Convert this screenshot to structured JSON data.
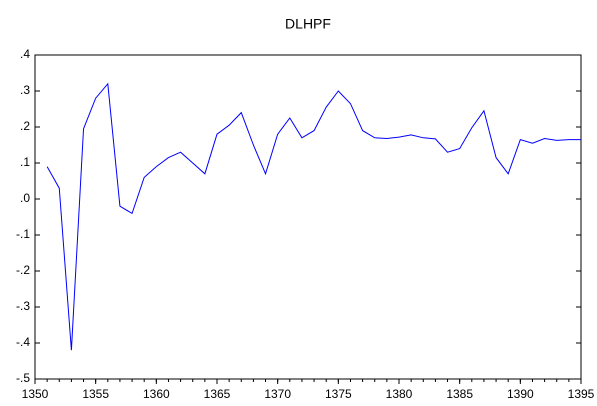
{
  "chart_data": {
    "type": "line",
    "title": "DLHPF",
    "x": [
      1351,
      1352,
      1353,
      1354,
      1355,
      1356,
      1357,
      1358,
      1359,
      1360,
      1361,
      1362,
      1363,
      1364,
      1365,
      1366,
      1367,
      1368,
      1369,
      1370,
      1371,
      1372,
      1373,
      1374,
      1375,
      1376,
      1377,
      1378,
      1379,
      1380,
      1381,
      1382,
      1383,
      1384,
      1385,
      1386,
      1387,
      1388,
      1389,
      1390,
      1391,
      1392,
      1393,
      1394,
      1395
    ],
    "series": [
      {
        "name": "DLHPF",
        "color": "#0000ff",
        "values": [
          0.09,
          0.03,
          -0.42,
          0.195,
          0.28,
          0.32,
          -0.02,
          -0.04,
          0.06,
          0.09,
          0.115,
          0.13,
          0.1,
          0.07,
          0.18,
          0.205,
          0.24,
          0.15,
          0.07,
          0.18,
          0.225,
          0.17,
          0.19,
          0.255,
          0.3,
          0.265,
          0.19,
          0.17,
          0.168,
          0.172,
          0.178,
          0.17,
          0.167,
          0.13,
          0.14,
          0.198,
          0.245,
          0.115,
          0.07,
          0.165,
          0.155,
          0.168,
          0.163,
          0.165,
          0.165
        ]
      }
    ],
    "xlim": [
      1350,
      1395
    ],
    "xticks": [
      1350,
      1355,
      1360,
      1365,
      1370,
      1375,
      1380,
      1385,
      1390,
      1395
    ],
    "ylim": [
      -0.5,
      0.4
    ],
    "yticks": [
      {
        "value": -0.5,
        "label": "-.5"
      },
      {
        "value": -0.4,
        "label": "-.4"
      },
      {
        "value": -0.3,
        "label": "-.3"
      },
      {
        "value": -0.2,
        "label": "-.2"
      },
      {
        "value": -0.1,
        "label": "-.1"
      },
      {
        "value": 0,
        "label": ".0"
      },
      {
        "value": 0.1,
        "label": ".1"
      },
      {
        "value": 0.2,
        "label": ".2"
      },
      {
        "value": 0.3,
        "label": ".3"
      },
      {
        "value": 0.4,
        "label": ".4"
      }
    ]
  }
}
